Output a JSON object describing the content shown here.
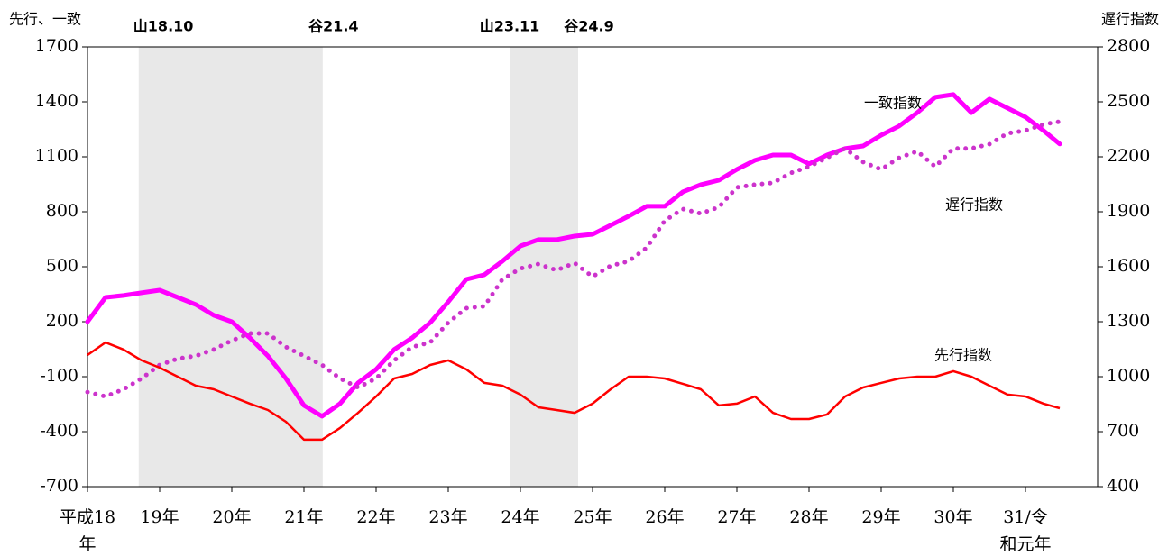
{
  "chart_data": {
    "type": "line",
    "y_label": "先行、一致",
    "y2_label": "遅行指数",
    "x": [
      18,
      18.25,
      18.5,
      18.75,
      19,
      19.25,
      19.5,
      19.75,
      20,
      20.25,
      20.5,
      20.75,
      21,
      21.25,
      21.5,
      21.75,
      22,
      22.25,
      22.5,
      22.75,
      23,
      23.25,
      23.5,
      23.75,
      24,
      24.25,
      24.5,
      24.75,
      25,
      25.25,
      25.5,
      25.75,
      26,
      26.25,
      26.5,
      26.75,
      27,
      27.25,
      27.5,
      27.75,
      28,
      28.25,
      28.5,
      28.75,
      29,
      29.25,
      29.5,
      29.75,
      30,
      30.25,
      30.5,
      30.75,
      31,
      31.25,
      31.475
    ],
    "xlim": [
      18,
      32
    ],
    "xticks": [
      {
        "value": 18,
        "label": "平成18\n年"
      },
      {
        "value": 19,
        "label": "19年"
      },
      {
        "value": 20,
        "label": "20年"
      },
      {
        "value": 21,
        "label": "21年"
      },
      {
        "value": 22,
        "label": "22年"
      },
      {
        "value": 23,
        "label": "23年"
      },
      {
        "value": 24,
        "label": "24年"
      },
      {
        "value": 25,
        "label": "25年"
      },
      {
        "value": 26,
        "label": "26年"
      },
      {
        "value": 27,
        "label": "27年"
      },
      {
        "value": 28,
        "label": "28年"
      },
      {
        "value": 29,
        "label": "29年"
      },
      {
        "value": 30,
        "label": "30年"
      },
      {
        "value": 31,
        "label": "31/令\n和元年"
      }
    ],
    "ylim": [
      -700,
      1700
    ],
    "yticks": [
      -700,
      -400,
      -100,
      200,
      500,
      800,
      1100,
      1400,
      1700
    ],
    "y2lim": [
      400,
      2800
    ],
    "y2ticks": [
      400,
      700,
      1000,
      1300,
      1600,
      1900,
      2200,
      2500,
      2800
    ],
    "shading": [
      {
        "start": 18.71,
        "end": 21.26,
        "start_label": "山18.10",
        "end_label": "谷21.4"
      },
      {
        "start": 23.85,
        "end": 24.8,
        "start_label": "山23.11",
        "end_label": "谷24.9"
      }
    ],
    "shade_color": "#e8e8e8",
    "series": [
      {
        "name": "一致指数",
        "color": "#ff00ff",
        "style": "solid",
        "values": [
          200,
          333,
          343,
          358,
          372,
          333,
          294,
          235,
          200,
          112,
          13,
          -110,
          -257,
          -316,
          -247,
          -134,
          -60,
          48,
          112,
          195,
          308,
          431,
          456,
          530,
          613,
          648,
          648,
          667,
          677,
          726,
          776,
          830,
          830,
          908,
          948,
          972,
          1031,
          1081,
          1110,
          1110,
          1061,
          1110,
          1145,
          1159,
          1218,
          1268,
          1341,
          1425,
          1440,
          1341,
          1415,
          1366,
          1317,
          1243,
          1170
        ]
      },
      {
        "name": "遅行指数",
        "color": "#cc33cc",
        "style": "dotted",
        "axis": "y2",
        "values": [
          916,
          892,
          931,
          990,
          1064,
          1098,
          1113,
          1148,
          1197,
          1236,
          1236,
          1162,
          1113,
          1064,
          990,
          941,
          990,
          1089,
          1162,
          1187,
          1295,
          1374,
          1384,
          1531,
          1590,
          1615,
          1581,
          1620,
          1546,
          1605,
          1630,
          1704,
          1851,
          1915,
          1890,
          1925,
          2033,
          2048,
          2058,
          2112,
          2146,
          2195,
          2245,
          2171,
          2131,
          2195,
          2230,
          2146,
          2245,
          2245,
          2269,
          2328,
          2343,
          2377,
          2392
        ]
      },
      {
        "name": "先行指数",
        "color": "#ff0000",
        "style": "thin",
        "values": [
          18,
          87,
          48,
          -11,
          -51,
          -100,
          -149,
          -169,
          -208,
          -247,
          -282,
          -346,
          -444,
          -444,
          -380,
          -297,
          -208,
          -110,
          -85,
          -36,
          -11,
          -60,
          -134,
          -149,
          -198,
          -267,
          -282,
          -297,
          -247,
          -169,
          -100,
          -100,
          -110,
          -139,
          -169,
          -257,
          -247,
          -208,
          -297,
          -331,
          -331,
          -306,
          -208,
          -159,
          -134,
          -110,
          -100,
          -100,
          -70,
          -100,
          -149,
          -198,
          -208,
          -247,
          -272
        ]
      }
    ]
  }
}
